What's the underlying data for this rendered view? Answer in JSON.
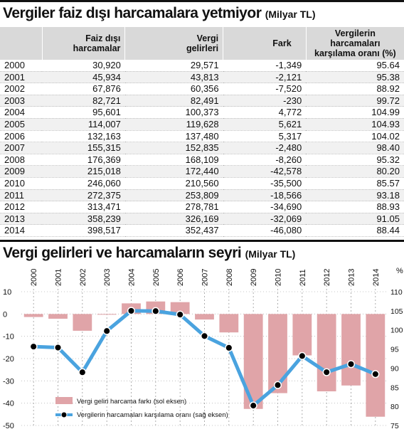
{
  "table": {
    "title": "Vergiler faiz dışı harcamalara yetmiyor",
    "unit": "(Milyar TL)",
    "headers": {
      "year": "",
      "expenditure": [
        "Faiz dışı",
        "harcamalar"
      ],
      "revenue": [
        "Vergi",
        "gelirleri"
      ],
      "difference": [
        "Fark"
      ],
      "ratio": [
        "Vergilerin harcamaları",
        "karşılama oranı (%)"
      ]
    },
    "rows": [
      {
        "year": "2000",
        "expenditure": "30,920",
        "revenue": "29,571",
        "difference": "-1,349",
        "ratio": "95.64"
      },
      {
        "year": "2001",
        "expenditure": "45,934",
        "revenue": "43,813",
        "difference": "-2,121",
        "ratio": "95.38"
      },
      {
        "year": "2002",
        "expenditure": "67,876",
        "revenue": "60,356",
        "difference": "-7,520",
        "ratio": "88.92"
      },
      {
        "year": "2003",
        "expenditure": "82,721",
        "revenue": "82,491",
        "difference": "-230",
        "ratio": "99.72"
      },
      {
        "year": "2004",
        "expenditure": "95,601",
        "revenue": "100,373",
        "difference": "4,772",
        "ratio": "104.99"
      },
      {
        "year": "2005",
        "expenditure": "114,007",
        "revenue": "119,628",
        "difference": "5,621",
        "ratio": "104.93"
      },
      {
        "year": "2006",
        "expenditure": "132,163",
        "revenue": "137,480",
        "difference": "5,317",
        "ratio": "104.02"
      },
      {
        "year": "2007",
        "expenditure": "155,315",
        "revenue": "152,835",
        "difference": "-2,480",
        "ratio": "98.40"
      },
      {
        "year": "2008",
        "expenditure": "176,369",
        "revenue": "168,109",
        "difference": "-8,260",
        "ratio": "95.32"
      },
      {
        "year": "2009",
        "expenditure": "215,018",
        "revenue": "172,440",
        "difference": "-42,578",
        "ratio": "80.20"
      },
      {
        "year": "2010",
        "expenditure": "246,060",
        "revenue": "210,560",
        "difference": "-35,500",
        "ratio": "85.57"
      },
      {
        "year": "2011",
        "expenditure": "272,375",
        "revenue": "253,809",
        "difference": "-18,566",
        "ratio": "93.18"
      },
      {
        "year": "2012",
        "expenditure": "313,471",
        "revenue": "278,781",
        "difference": "-34,690",
        "ratio": "88.93"
      },
      {
        "year": "2013",
        "expenditure": "358,239",
        "revenue": "326,169",
        "difference": "-32,069",
        "ratio": "91.05"
      },
      {
        "year": "2014",
        "expenditure": "398,517",
        "revenue": "352,437",
        "difference": "-46,080",
        "ratio": "88.44"
      }
    ]
  },
  "chart_data": {
    "type": "bar",
    "title": "Vergi gelirleri ve harcamaların seyri",
    "unit": "(Milyar TL)",
    "categories": [
      "2000",
      "2001",
      "2002",
      "2003",
      "2004",
      "2005",
      "2006",
      "2007",
      "2008",
      "2009",
      "2010",
      "2011",
      "2012",
      "2013",
      "2014"
    ],
    "series": [
      {
        "name": "Vergi geliri harcama farkı (sol eksen)",
        "type": "bar",
        "axis": "left",
        "color": "#e0a4a8",
        "values": [
          -1.349,
          -2.121,
          -7.52,
          -0.23,
          4.772,
          5.621,
          5.317,
          -2.48,
          -8.26,
          -42.578,
          -35.5,
          -18.566,
          -34.69,
          -32.069,
          -46.08
        ]
      },
      {
        "name": "Vergilerin harcamaları karşılama oranı (sağ eksen)",
        "type": "line",
        "axis": "right",
        "color": "#4aa3df",
        "marker_color": "#000000",
        "values": [
          95.64,
          95.38,
          88.92,
          99.72,
          104.99,
          104.93,
          104.02,
          98.4,
          95.32,
          80.2,
          85.57,
          93.18,
          88.93,
          91.05,
          88.44
        ]
      }
    ],
    "left_axis": {
      "min": -50,
      "max": 10,
      "ticks": [
        10,
        0,
        -10,
        -20,
        -30,
        -40,
        -50
      ]
    },
    "right_axis": {
      "label": "%",
      "min": 75,
      "max": 110,
      "ticks": [
        110,
        105,
        100,
        95,
        90,
        85,
        80,
        75
      ]
    },
    "grid": true,
    "legend_position": "bottom-left",
    "x_label_rotation": -90
  }
}
